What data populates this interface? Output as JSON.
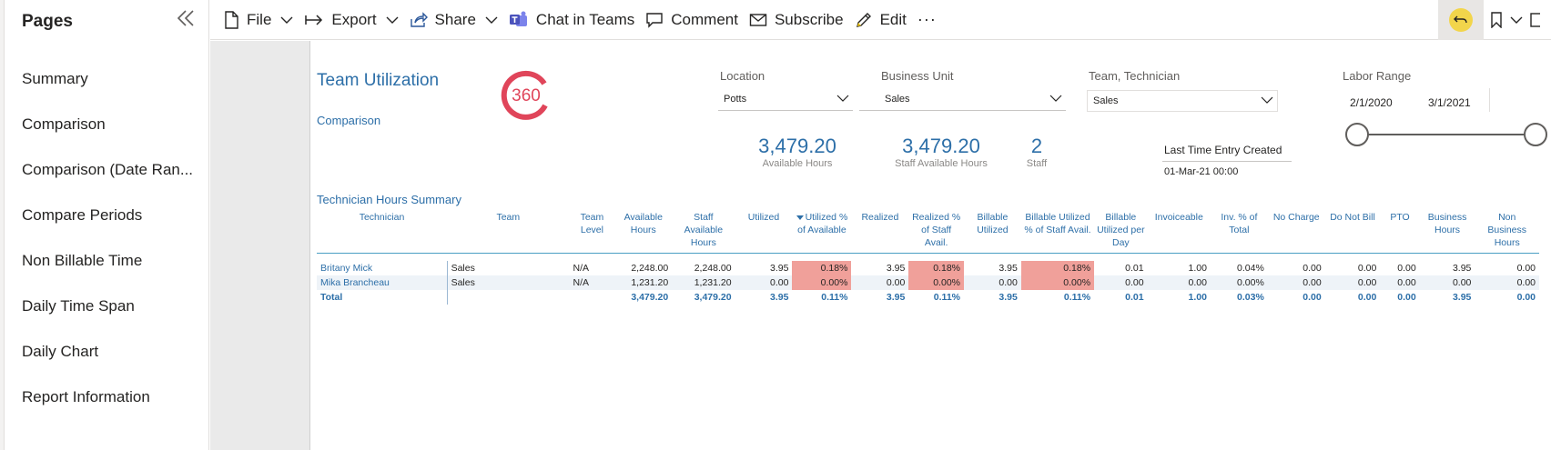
{
  "pages_pane": {
    "title": "Pages",
    "items": [
      {
        "label": "Summary"
      },
      {
        "label": "Comparison"
      },
      {
        "label": "Comparison (Date Ran..."
      },
      {
        "label": "Compare Periods"
      },
      {
        "label": "Non Billable Time"
      },
      {
        "label": "Daily Time Span"
      },
      {
        "label": "Daily Chart"
      },
      {
        "label": "Report Information"
      }
    ]
  },
  "toolbar": {
    "file": "File",
    "export": "Export",
    "share": "Share",
    "chat_in_teams": "Chat in Teams",
    "comment": "Comment",
    "subscribe": "Subscribe",
    "edit": "Edit",
    "more": "···"
  },
  "report": {
    "title": "Team Utilization",
    "subtitle": "Comparison",
    "logo_text": "360",
    "slicers": {
      "location": {
        "label": "Location",
        "value": "Potts"
      },
      "business_unit": {
        "label": "Business Unit",
        "value": "Sales"
      },
      "team_technician": {
        "label": "Team, Technician",
        "value": "Sales"
      },
      "labor_range": {
        "label": "Labor Range",
        "start": "2/1/2020",
        "end": "3/1/2021"
      }
    },
    "kpis": [
      {
        "value": "3,479.20",
        "label": "Available Hours"
      },
      {
        "value": "3,479.20",
        "label": "Staff Available Hours"
      },
      {
        "value": "2",
        "label": "Staff"
      }
    ],
    "last_entry": {
      "label": "Last Time Entry Created",
      "value": "01-Mar-21 00:00"
    },
    "table": {
      "title": "Technician Hours Summary",
      "columns": [
        "Technician",
        "Team",
        "Team Level",
        "Available Hours",
        "Staff Available Hours",
        "Utilized",
        "Utilized % of Available",
        "Realized",
        "Realized % of Staff Avail.",
        "Billable Utilized",
        "Billable Utilized % of Staff Avail.",
        "Billable Utilized per Day",
        "Invoiceable",
        "Inv. % of Total",
        "No Charge",
        "Do Not Bill",
        "PTO",
        "Business Hours",
        "Non Business Hours"
      ],
      "rows": [
        [
          "Britany Mick",
          "Sales",
          "N/A",
          "2,248.00",
          "2,248.00",
          "3.95",
          "0.18%",
          "3.95",
          "0.18%",
          "3.95",
          "0.18%",
          "0.01",
          "1.00",
          "0.04%",
          "0.00",
          "0.00",
          "0.00",
          "3.95",
          "0.00"
        ],
        [
          "Mika Brancheau",
          "Sales",
          "N/A",
          "1,231.20",
          "1,231.20",
          "0.00",
          "0.00%",
          "0.00",
          "0.00%",
          "0.00",
          "0.00%",
          "0.00",
          "0.00",
          "0.00%",
          "0.00",
          "0.00",
          "0.00",
          "0.00",
          "0.00"
        ]
      ],
      "total": [
        "Total",
        "",
        "",
        "3,479.20",
        "3,479.20",
        "3.95",
        "0.11%",
        "3.95",
        "0.11%",
        "3.95",
        "0.11%",
        "0.01",
        "1.00",
        "0.03%",
        "0.00",
        "0.00",
        "0.00",
        "3.95",
        "0.00"
      ]
    }
  },
  "colors": {
    "accent": "#2d6fa8",
    "highlight": "#f0a09a",
    "logo": "#e0455a"
  }
}
